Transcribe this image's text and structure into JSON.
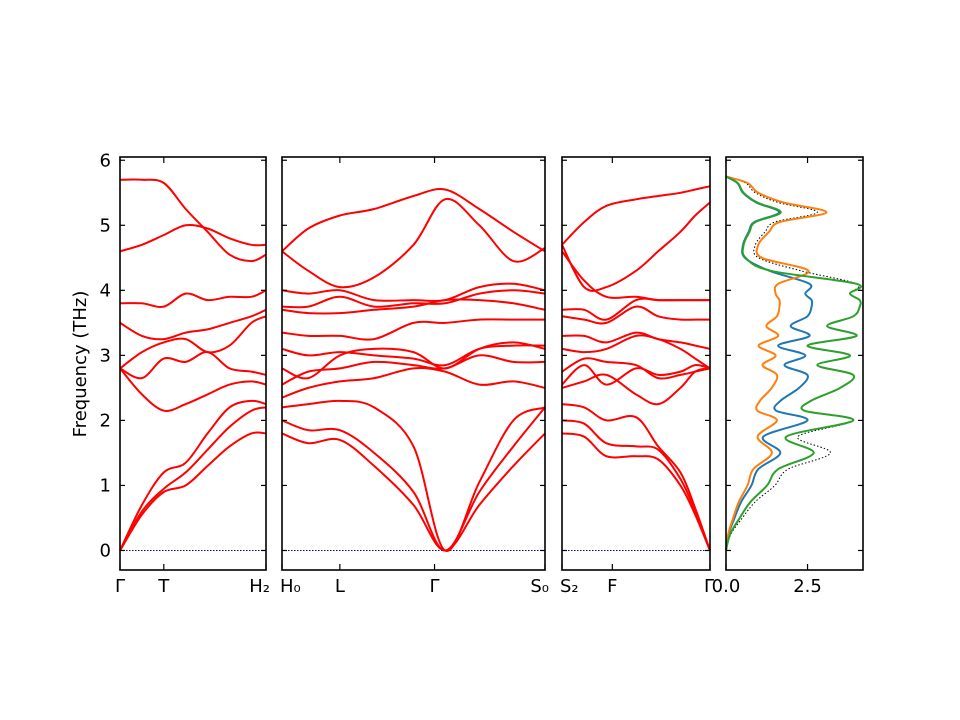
{
  "chart_data": {
    "type": "line",
    "ylabel": "Frequency (THz)",
    "ylim": [
      -0.3,
      6.05
    ],
    "yticks": [
      0,
      1,
      2,
      3,
      4,
      5,
      6
    ],
    "path_labels": [
      "Γ",
      "T",
      "H₂|H₀",
      "L",
      "Γ",
      "S₀|S₂",
      "F",
      "Γ"
    ],
    "colors": {
      "bands": "#ff0000",
      "zero_line": "#0000aa",
      "dos_total": "#000000",
      "dos_1": "#1f77b4",
      "dos_2": "#ff7f0e",
      "dos_3": "#2ca02c"
    },
    "segments": [
      {
        "x": [
          0,
          0.15,
          0.3,
          0.45,
          0.6,
          0.75,
          0.9,
          1.0
        ],
        "tick_positions": [
          0,
          0.3,
          1.0
        ],
        "tick_labels": [
          "Γ",
          "T",
          "H₂"
        ],
        "bands": [
          [
            0,
            0.55,
            0.9,
            1.0,
            1.3,
            1.6,
            1.8,
            1.8
          ],
          [
            0,
            0.6,
            0.95,
            1.2,
            1.55,
            1.9,
            2.15,
            2.2
          ],
          [
            0,
            0.7,
            1.2,
            1.35,
            1.8,
            2.2,
            2.3,
            2.25
          ],
          [
            2.8,
            2.4,
            2.15,
            2.25,
            2.4,
            2.55,
            2.6,
            2.55
          ],
          [
            2.8,
            2.65,
            2.95,
            2.9,
            3.05,
            2.8,
            2.75,
            2.7
          ],
          [
            2.8,
            3.05,
            3.2,
            3.25,
            3.05,
            3.15,
            3.5,
            3.6
          ],
          [
            3.5,
            3.3,
            3.25,
            3.35,
            3.4,
            3.5,
            3.6,
            3.7
          ],
          [
            3.8,
            3.8,
            3.75,
            3.95,
            3.85,
            3.9,
            3.9,
            4.0
          ],
          [
            4.6,
            4.7,
            4.85,
            5.0,
            4.95,
            4.8,
            4.7,
            4.7
          ],
          [
            5.7,
            5.7,
            5.65,
            5.25,
            4.9,
            4.55,
            4.45,
            4.55
          ]
        ]
      },
      {
        "x": [
          0,
          0.1,
          0.22,
          0.35,
          0.5,
          0.62,
          0.75,
          0.88,
          1.0
        ],
        "tick_positions": [
          0,
          0.22,
          0.58,
          1.0
        ],
        "tick_labels": [
          "H₀",
          "L",
          "Γ",
          "S₀"
        ],
        "bands": [
          [
            1.8,
            1.65,
            1.7,
            1.3,
            0.7,
            0.0,
            0.7,
            1.3,
            1.8
          ],
          [
            2.0,
            1.85,
            1.85,
            1.5,
            0.9,
            0.0,
            0.9,
            1.6,
            2.2
          ],
          [
            2.2,
            2.25,
            2.3,
            2.2,
            1.6,
            0.0,
            1.05,
            2.0,
            2.2
          ],
          [
            2.35,
            2.5,
            2.6,
            2.65,
            2.8,
            2.75,
            2.55,
            2.6,
            2.5
          ],
          [
            2.55,
            2.75,
            2.8,
            2.9,
            2.85,
            2.8,
            3.0,
            2.9,
            2.9
          ],
          [
            2.8,
            2.65,
            3.0,
            3.1,
            3.05,
            2.8,
            3.1,
            3.2,
            3.1
          ],
          [
            3.1,
            3.0,
            3.05,
            3.0,
            2.95,
            2.85,
            3.1,
            3.15,
            3.15
          ],
          [
            3.35,
            3.3,
            3.3,
            3.25,
            3.5,
            3.5,
            3.55,
            3.55,
            3.55
          ],
          [
            3.7,
            3.65,
            3.65,
            3.7,
            3.75,
            3.85,
            3.85,
            3.8,
            3.7
          ],
          [
            3.75,
            3.75,
            3.9,
            3.75,
            3.8,
            3.8,
            3.95,
            4.0,
            3.95
          ],
          [
            4.0,
            3.95,
            4.0,
            3.85,
            3.85,
            3.85,
            4.05,
            4.1,
            4.0
          ],
          [
            4.6,
            4.3,
            4.05,
            4.2,
            4.7,
            5.4,
            5.0,
            4.45,
            4.65
          ],
          [
            4.6,
            4.95,
            5.15,
            5.25,
            5.45,
            5.55,
            5.25,
            4.9,
            4.6
          ]
        ]
      },
      {
        "x": [
          0,
          0.15,
          0.3,
          0.5,
          0.65,
          0.8,
          0.9,
          1.0
        ],
        "tick_positions": [
          0,
          0.34,
          1.0
        ],
        "tick_labels": [
          "S₂",
          "F",
          "Γ"
        ],
        "bands": [
          [
            1.8,
            1.75,
            1.45,
            1.45,
            1.4,
            1.0,
            0.55,
            0.0
          ],
          [
            2.0,
            1.95,
            1.65,
            1.6,
            1.55,
            1.1,
            0.6,
            0.0
          ],
          [
            2.25,
            2.2,
            2.0,
            2.05,
            1.6,
            1.2,
            0.65,
            0.0
          ],
          [
            2.5,
            2.6,
            2.7,
            2.4,
            2.25,
            2.5,
            2.75,
            2.8
          ],
          [
            2.55,
            2.85,
            2.55,
            2.8,
            2.7,
            2.75,
            2.85,
            2.8
          ],
          [
            2.75,
            2.95,
            2.9,
            2.85,
            2.65,
            2.7,
            2.75,
            2.8
          ],
          [
            3.1,
            3.05,
            3.1,
            3.3,
            3.25,
            3.1,
            2.95,
            2.8
          ],
          [
            3.3,
            3.3,
            3.2,
            3.35,
            3.25,
            3.2,
            3.15,
            3.1
          ],
          [
            3.6,
            3.55,
            3.5,
            3.75,
            3.6,
            3.55,
            3.55,
            3.55
          ],
          [
            3.7,
            3.7,
            3.55,
            3.85,
            3.85,
            3.85,
            3.85,
            3.85
          ],
          [
            4.6,
            4.15,
            3.9,
            3.9,
            3.85,
            3.85,
            3.85,
            3.85
          ],
          [
            4.7,
            4.05,
            4.05,
            4.3,
            4.6,
            4.9,
            5.15,
            5.35
          ],
          [
            4.7,
            5.05,
            5.3,
            5.4,
            5.45,
            5.5,
            5.55,
            5.6
          ]
        ]
      }
    ],
    "dos": {
      "xticks": [
        0.0,
        2.5
      ],
      "xtick_labels": [
        "0.0",
        "2.5"
      ],
      "xlim": [
        0,
        4.2
      ],
      "freq": [
        0,
        0.25,
        0.5,
        0.75,
        1.0,
        1.25,
        1.5,
        1.75,
        2.0,
        2.15,
        2.3,
        2.5,
        2.7,
        2.85,
        3.0,
        3.15,
        3.3,
        3.45,
        3.6,
        3.75,
        3.85,
        3.95,
        4.1,
        4.3,
        4.5,
        4.7,
        4.9,
        5.05,
        5.2,
        5.35,
        5.5,
        5.65,
        5.75
      ],
      "total": [
        0,
        0.15,
        0.5,
        0.9,
        1.5,
        1.9,
        3.2,
        2.2,
        3.9,
        2.4,
        2.6,
        3.5,
        3.9,
        2.8,
        3.8,
        2.5,
        4.0,
        3.1,
        3.9,
        4.1,
        4.1,
        3.8,
        4.0,
        2.3,
        1.0,
        0.9,
        1.2,
        1.5,
        2.8,
        1.6,
        0.9,
        0.6,
        0
      ]
    }
  }
}
